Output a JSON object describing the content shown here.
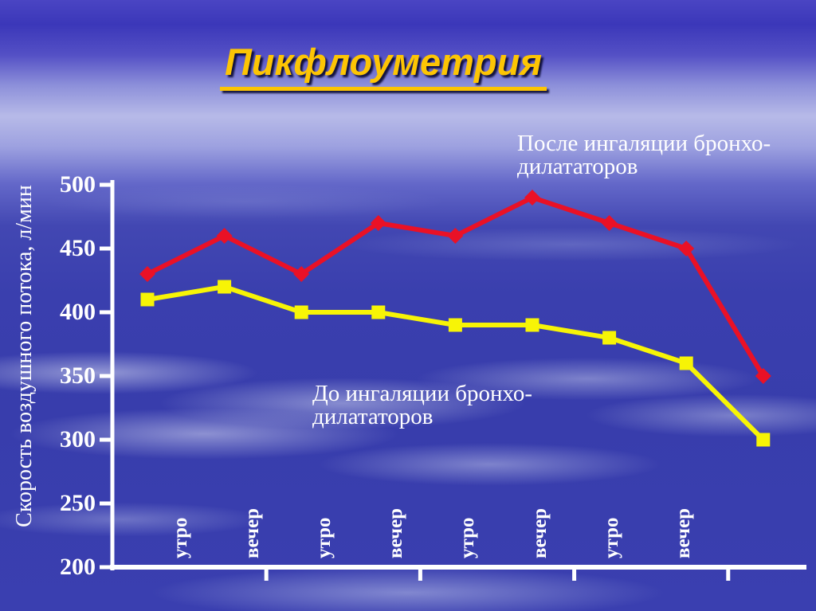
{
  "colors": {
    "title_gold": "#fdc504",
    "text_white": "#ffffff",
    "axis_white": "#ffffff",
    "series_after_red": "#ea1126",
    "series_before_yellow": "#f7f406",
    "background_top_blue": "#3b37b9",
    "background_light_band": "#b7bae8",
    "background_main_blue": "#383dac"
  },
  "chart_data": {
    "type": "line",
    "title": "Пикфлоуметрия",
    "ylabel": "Скорость воздушного потока, л/мин",
    "xlabel": "",
    "ylim": [
      200,
      500
    ],
    "y_ticks": [
      200,
      250,
      300,
      350,
      400,
      450,
      500
    ],
    "categories": [
      "утро",
      "вечер",
      "утро",
      "вечер",
      "утро",
      "вечер",
      "утро",
      "вечер",
      ""
    ],
    "grid": false,
    "legend_position": "free-annotations",
    "series": [
      {
        "name": "После ингаляции бронходилататоров",
        "label": "После ингаляции бронхо-\nдилататоров",
        "marker": "diamond",
        "color": "#ea1126",
        "values": [
          430,
          460,
          430,
          470,
          460,
          490,
          470,
          450,
          350
        ]
      },
      {
        "name": "До ингаляции бронходилататоров",
        "label": "До ингаляции бронхо-\nдилататоров",
        "marker": "square",
        "color": "#f7f406",
        "values": [
          410,
          420,
          400,
          400,
          390,
          390,
          380,
          360,
          300
        ]
      }
    ]
  }
}
